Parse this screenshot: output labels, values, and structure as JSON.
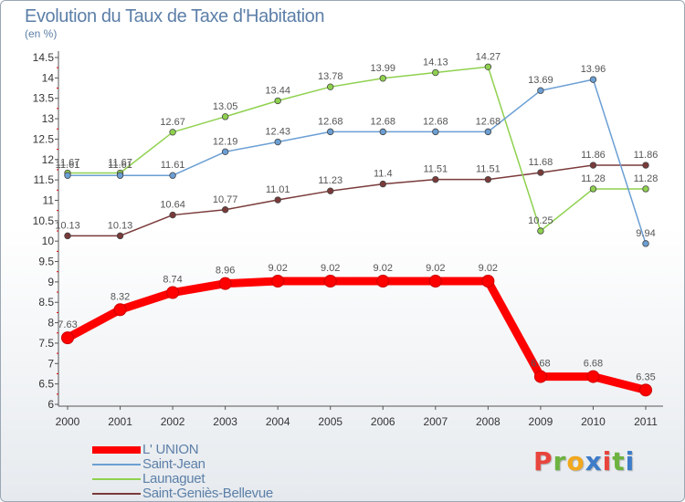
{
  "header": {
    "title": "Evolution du Taux de Taxe d'Habitation",
    "subtitle": "(en %)"
  },
  "brand": {
    "letters": [
      "P",
      "r",
      "o",
      "x",
      "i",
      "t",
      "i"
    ],
    "colors": [
      "#e8453c",
      "#6cb33f",
      "#f2a81d",
      "#3d7cc9",
      "#e8453c",
      "#6cb33f",
      "#3d7cc9"
    ]
  },
  "chart_data": {
    "type": "line",
    "title": "Evolution du Taux de Taxe d'Habitation",
    "ylabel": "(en %)",
    "xlabel": "",
    "x": [
      "2000",
      "2001",
      "2002",
      "2003",
      "2004",
      "2005",
      "2006",
      "2007",
      "2008",
      "2009",
      "2010",
      "2011"
    ],
    "ylim": [
      6,
      14.5
    ],
    "yticks": [
      "6",
      "6.5",
      "7",
      "7.5",
      "8",
      "8.5",
      "9",
      "9.5",
      "10",
      "10.5",
      "11",
      "11.5",
      "12",
      "12.5",
      "13",
      "13.5",
      "14",
      "14.5"
    ],
    "grid": false,
    "legend_position": "bottom-left",
    "series": [
      {
        "name": "L' UNION",
        "color": "#ff0000",
        "values": [
          7.63,
          8.32,
          8.74,
          8.96,
          9.02,
          9.02,
          9.02,
          9.02,
          9.02,
          6.68,
          6.68,
          6.35
        ],
        "labels": [
          "7.63",
          "8.32",
          "8.74",
          "8.96",
          "9.02",
          "9.02",
          "9.02",
          "9.02",
          "9.02",
          "6.68",
          "6.68",
          "6.35"
        ]
      },
      {
        "name": "Saint-Jean",
        "color": "#6b9fd4",
        "values": [
          11.61,
          11.61,
          11.61,
          12.19,
          12.43,
          12.68,
          12.68,
          12.68,
          12.68,
          13.69,
          13.96,
          9.94
        ],
        "labels": [
          "11.61",
          "11.61",
          "11.61",
          "12.19",
          "12.43",
          "12.68",
          "12.68",
          "12.68",
          "12.68",
          "13.69",
          "13.96",
          "9.94"
        ]
      },
      {
        "name": "Launaguet",
        "color": "#8fd14f",
        "values": [
          11.67,
          11.67,
          12.67,
          13.05,
          13.44,
          13.78,
          13.99,
          14.13,
          14.27,
          10.25,
          11.28,
          11.28
        ],
        "labels": [
          "11.67",
          "11.67",
          "12.67",
          "13.05",
          "13.44",
          "13.78",
          "13.99",
          "14.13",
          "14.27",
          "10.25",
          "11.28",
          "11.28"
        ]
      },
      {
        "name": "Saint-Geniès-Bellevue",
        "color": "#7a3a3a",
        "values": [
          10.13,
          10.13,
          10.64,
          10.77,
          11.01,
          11.23,
          11.4,
          11.51,
          11.51,
          11.68,
          11.86,
          11.86
        ],
        "labels": [
          "10.13",
          "10.13",
          "10.64",
          "10.77",
          "11.01",
          "11.23",
          "11.4",
          "11.51",
          "11.51",
          "11.68",
          "11.86",
          "11.86"
        ]
      }
    ]
  }
}
